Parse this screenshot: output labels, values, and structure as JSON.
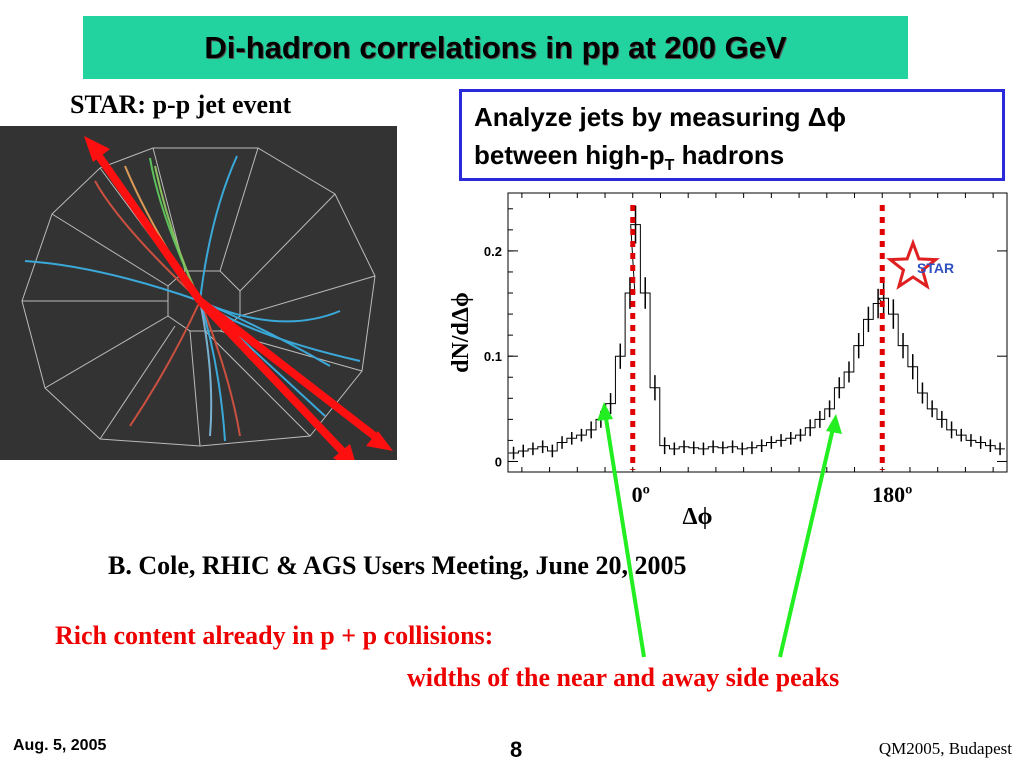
{
  "slide": {
    "title": "Di-hadron correlations in pp at 200 GeV",
    "event_caption": "STAR: p-p jet event",
    "info_line1": "Analyze jets by measuring Δϕ",
    "info_line2_prefix": "between high-p",
    "info_line2_sub": "T",
    "info_line2_suffix": " hadrons",
    "citation": "B. Cole, RHIC & AGS Users Meeting, June 20, 2005",
    "note_line1": "Rich content already in p + p collisions:",
    "note_line2": "widths of the near and away side peaks",
    "footer_date": "Aug. 5, 2005",
    "footer_page": "8",
    "footer_conference": "QM2005, Budapest"
  },
  "colors": {
    "title_bg": "#22d3a0",
    "info_border": "#2a2adb",
    "note_text": "#e00000",
    "arrow_green": "#22ee22",
    "arrow_red": "#ff1010",
    "dotted_red": "#e00000"
  },
  "chart_data": {
    "type": "line",
    "ylabel": "dN/dΔϕ",
    "xlabel": "Δϕ",
    "x_tick_labels": [
      "0º",
      "180º"
    ],
    "y_ticks": [
      0,
      0.1,
      0.2
    ],
    "y_tick_labels": [
      "0",
      "0.1",
      "0.2"
    ],
    "ylim": [
      -0.01,
      0.255
    ],
    "xlim": [
      -90,
      270
    ],
    "logo_text": "STAR",
    "reference_lines_x": [
      0,
      180
    ],
    "series": [
      {
        "x": [
          -86,
          -79,
          -72,
          -65,
          -58,
          -51,
          -44,
          -37,
          -30,
          -23,
          -16,
          -9,
          -2,
          2,
          9,
          16,
          23,
          30,
          37,
          44,
          51,
          58,
          65,
          72,
          79,
          86,
          93,
          100,
          107,
          114,
          121,
          128,
          135,
          142,
          149,
          156,
          163,
          170,
          177,
          181,
          188,
          195,
          202,
          209,
          216,
          223,
          230,
          237,
          244,
          251,
          258,
          265
        ],
        "y": [
          0.008,
          0.01,
          0.012,
          0.014,
          0.01,
          0.018,
          0.022,
          0.025,
          0.03,
          0.04,
          0.055,
          0.1,
          0.16,
          0.225,
          0.16,
          0.07,
          0.015,
          0.012,
          0.014,
          0.013,
          0.012,
          0.014,
          0.013,
          0.014,
          0.012,
          0.013,
          0.015,
          0.018,
          0.02,
          0.022,
          0.025,
          0.032,
          0.04,
          0.05,
          0.07,
          0.085,
          0.11,
          0.135,
          0.15,
          0.155,
          0.14,
          0.11,
          0.09,
          0.065,
          0.05,
          0.04,
          0.03,
          0.025,
          0.02,
          0.018,
          0.015,
          0.012
        ],
        "errors": [
          0.006,
          0.006,
          0.006,
          0.006,
          0.006,
          0.006,
          0.006,
          0.006,
          0.008,
          0.008,
          0.01,
          0.012,
          0.015,
          0.018,
          0.015,
          0.012,
          0.008,
          0.006,
          0.006,
          0.006,
          0.006,
          0.006,
          0.006,
          0.006,
          0.006,
          0.006,
          0.006,
          0.006,
          0.006,
          0.006,
          0.006,
          0.008,
          0.008,
          0.008,
          0.01,
          0.01,
          0.012,
          0.012,
          0.014,
          0.015,
          0.014,
          0.012,
          0.012,
          0.01,
          0.008,
          0.008,
          0.008,
          0.006,
          0.006,
          0.006,
          0.006,
          0.006
        ]
      }
    ]
  }
}
